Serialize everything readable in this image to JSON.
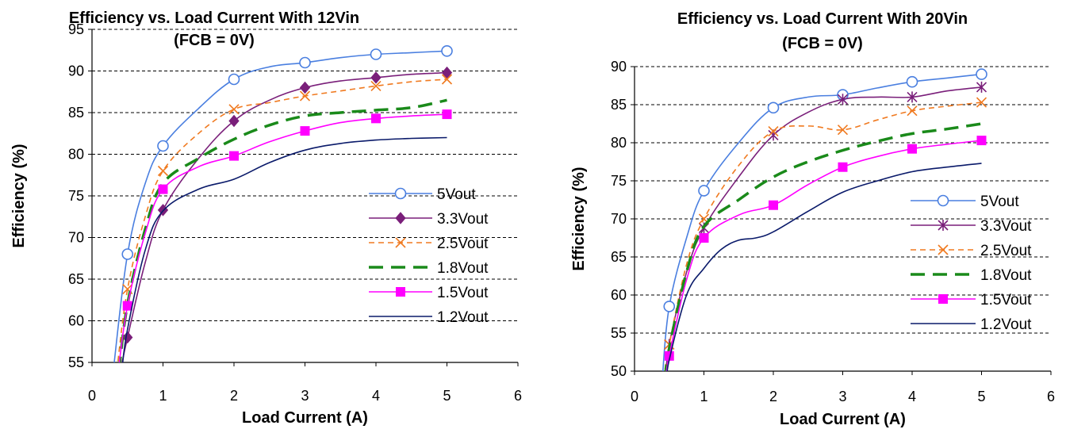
{
  "chart_data": [
    {
      "type": "line",
      "title": "Efficiency vs. Load Current With 12Vin",
      "subtitle": "(FCB = 0V)",
      "xlabel": "Load Current (A)",
      "ylabel": "Efficiency (%)",
      "xlim": [
        0,
        6
      ],
      "ylim": [
        55,
        95
      ],
      "xticks": [
        "0",
        "1",
        "2",
        "3",
        "4",
        "5",
        "6"
      ],
      "yticks": [
        "55",
        "60",
        "65",
        "70",
        "75",
        "80",
        "85",
        "90",
        "95"
      ],
      "grid": "horizontal dashed",
      "legend": "bottom-right",
      "series": [
        {
          "name": "5Vout",
          "color": "#4a7fe0",
          "marker": "circle",
          "dash": "solid",
          "x": [
            0.3,
            0.5,
            0.75,
            1,
            1.5,
            2,
            2.5,
            3,
            3.5,
            4,
            4.5,
            5
          ],
          "y": [
            54,
            68,
            76.5,
            81,
            85.5,
            89,
            90.5,
            91,
            91.6,
            92,
            92.2,
            92.4
          ],
          "markers": [
            0.5,
            1,
            2,
            3,
            4,
            5
          ]
        },
        {
          "name": "3.3Vout",
          "color": "#7a1f7a",
          "marker": "diamond",
          "dash": "solid",
          "x": [
            0.4,
            0.5,
            0.75,
            1,
            1.5,
            2,
            2.5,
            3,
            3.5,
            4,
            4.5,
            5
          ],
          "y": [
            54,
            58,
            67,
            73.3,
            79.5,
            84,
            86.5,
            88,
            88.8,
            89.2,
            89.6,
            89.8
          ],
          "markers": [
            0.5,
            1,
            2,
            3,
            4,
            5
          ]
        },
        {
          "name": "2.5Vout",
          "color": "#f07a20",
          "marker": "x",
          "dash": "dash",
          "x": [
            0.35,
            0.5,
            0.75,
            1,
            1.5,
            2,
            2.5,
            3,
            3.5,
            4,
            4.5,
            5
          ],
          "y": [
            54,
            63.8,
            72.5,
            78,
            82.5,
            85.4,
            86.2,
            87,
            87.6,
            88.2,
            88.7,
            89
          ],
          "markers": [
            0.5,
            1,
            2,
            3,
            4,
            5
          ]
        },
        {
          "name": "1.8Vout",
          "color": "#1a8a1a",
          "marker": "none",
          "dash": "longdash",
          "x": [
            0.38,
            0.5,
            0.75,
            1,
            1.5,
            2,
            2.5,
            3,
            3.5,
            4,
            4.5,
            5
          ],
          "y": [
            54,
            62,
            71,
            76.5,
            79.5,
            81.8,
            83.5,
            84.6,
            85,
            85.3,
            85.6,
            86.5
          ],
          "markers": []
        },
        {
          "name": "1.5Vout",
          "color": "#ff00ff",
          "marker": "square",
          "dash": "solid",
          "x": [
            0.37,
            0.5,
            0.75,
            1,
            1.5,
            2,
            2.5,
            3,
            3.5,
            4,
            4.5,
            5
          ],
          "y": [
            54,
            61.8,
            70.5,
            75.8,
            78.5,
            79.8,
            81.5,
            82.8,
            83.8,
            84.3,
            84.6,
            84.8
          ],
          "markers": [
            0.5,
            1,
            2,
            3,
            4,
            5
          ]
        },
        {
          "name": "1.2Vout",
          "color": "#0a1a6a",
          "marker": "none",
          "dash": "solid",
          "x": [
            0.42,
            0.5,
            0.75,
            1,
            1.5,
            2,
            2.5,
            3,
            3.5,
            4,
            4.5,
            5
          ],
          "y": [
            54,
            59,
            68.5,
            73.2,
            75.8,
            77,
            79,
            80.5,
            81.3,
            81.7,
            81.9,
            82
          ],
          "markers": []
        }
      ]
    },
    {
      "type": "line",
      "title": "Efficiency vs. Load Current With 20Vin",
      "subtitle": "(FCB = 0V)",
      "xlabel": "Load Current (A)",
      "ylabel": "Efficiency (%)",
      "xlim": [
        0,
        6
      ],
      "ylim": [
        50,
        90
      ],
      "xticks": [
        "0",
        "1",
        "2",
        "3",
        "4",
        "5",
        "6"
      ],
      "yticks": [
        "50",
        "55",
        "60",
        "65",
        "70",
        "75",
        "80",
        "85",
        "90"
      ],
      "grid": "horizontal dashed",
      "legend": "bottom-right",
      "series": [
        {
          "name": "5Vout",
          "color": "#4a7fe0",
          "marker": "circle",
          "dash": "solid",
          "x": [
            0.4,
            0.5,
            0.75,
            1,
            1.5,
            2,
            2.5,
            3,
            3.5,
            4,
            4.5,
            5
          ],
          "y": [
            49,
            58.5,
            67.5,
            73.7,
            80,
            84.6,
            86,
            86.3,
            87.2,
            88,
            88.5,
            89
          ],
          "markers": [
            0.5,
            1,
            2,
            3,
            4,
            5
          ]
        },
        {
          "name": "3.3Vout",
          "color": "#7a1f7a",
          "marker": "star",
          "dash": "solid",
          "x": [
            0.45,
            0.5,
            0.75,
            1,
            1.5,
            2,
            2.5,
            3,
            3.5,
            4,
            4.5,
            5
          ],
          "y": [
            49,
            53.5,
            63,
            68.8,
            75.5,
            81,
            84,
            85.7,
            86,
            86,
            86.8,
            87.3
          ],
          "markers": [
            0.5,
            1,
            2,
            3,
            4,
            5
          ]
        },
        {
          "name": "2.5Vout",
          "color": "#f07a20",
          "marker": "x",
          "dash": "dash",
          "x": [
            0.42,
            0.5,
            0.75,
            1,
            1.5,
            2,
            2.5,
            3,
            3.5,
            4,
            4.5,
            5
          ],
          "y": [
            49,
            53.5,
            64,
            70,
            77,
            81.5,
            82.2,
            81.7,
            83,
            84.2,
            84.8,
            85.3
          ],
          "markers": [
            0.5,
            1,
            2,
            3,
            4,
            5
          ]
        },
        {
          "name": "1.8Vout",
          "color": "#1a8a1a",
          "marker": "none",
          "dash": "longdash",
          "x": [
            0.44,
            0.5,
            0.75,
            1,
            1.5,
            2,
            2.5,
            3,
            3.5,
            4,
            4.5,
            5
          ],
          "y": [
            49,
            53,
            63,
            69,
            72.5,
            75.5,
            77.5,
            79,
            80.2,
            81.2,
            81.8,
            82.5
          ],
          "markers": []
        },
        {
          "name": "1.5Vout",
          "color": "#ff00ff",
          "marker": "square",
          "dash": "solid",
          "x": [
            0.45,
            0.5,
            0.75,
            1,
            1.5,
            2,
            2.5,
            3,
            3.5,
            4,
            4.5,
            5
          ],
          "y": [
            49,
            52,
            62,
            67.5,
            70.5,
            71.8,
            74.5,
            76.8,
            78.2,
            79.2,
            79.8,
            80.3
          ],
          "markers": [
            0.5,
            1,
            2,
            3,
            4,
            5
          ]
        },
        {
          "name": "1.2Vout",
          "color": "#0a1a6a",
          "marker": "none",
          "dash": "solid",
          "x": [
            0.47,
            0.5,
            0.75,
            1,
            1.25,
            1.5,
            1.75,
            2,
            2.5,
            3,
            3.5,
            4,
            4.5,
            5
          ],
          "y": [
            49,
            51.5,
            60,
            63.5,
            66,
            67.2,
            67.5,
            68.3,
            71,
            73.5,
            75,
            76.2,
            76.8,
            77.3
          ],
          "markers": []
        }
      ]
    }
  ]
}
